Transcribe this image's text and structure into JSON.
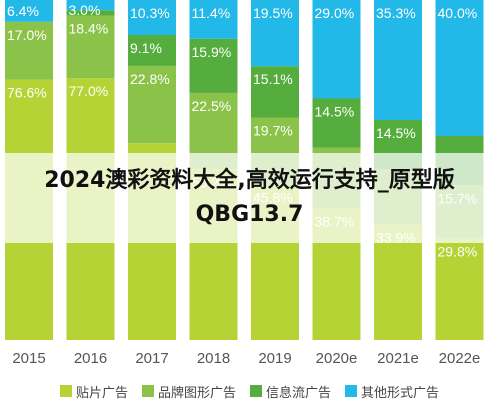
{
  "chart_data": {
    "type": "bar",
    "stacked": true,
    "normalized_percent": true,
    "categories": [
      "2015",
      "2016",
      "2017",
      "2018",
      "2019",
      "2020e",
      "2021e",
      "2022e"
    ],
    "series": [
      {
        "name": "贴片广告",
        "color": "#b5d334",
        "values": [
          76.6,
          77.0,
          58.0,
          50.2,
          45.8,
          38.7,
          33.9,
          29.8
        ],
        "labels": [
          "76.6%",
          "77.0%",
          "",
          "50.2%",
          "45.8%",
          "38.7%",
          "33.9%",
          "29.8%"
        ]
      },
      {
        "name": "品牌图形广告",
        "color": "#8bc34a",
        "values": [
          17.0,
          18.4,
          22.8,
          22.5,
          19.7,
          17.9,
          16.3,
          15.7
        ],
        "labels": [
          "17.0%",
          "18.4%",
          "22.8%",
          "22.5%",
          "19.7%",
          "",
          "",
          "15.7%"
        ]
      },
      {
        "name": "信息流广告",
        "color": "#55ad3d",
        "values": [
          0,
          1.6,
          9.1,
          15.9,
          15.1,
          14.5,
          14.5,
          14.5
        ],
        "labels": [
          "",
          "",
          "9.1%",
          "15.9%",
          "15.1%",
          "14.5%",
          "14.5%",
          ""
        ]
      },
      {
        "name": "其他形式广告",
        "color": "#22b8e8",
        "values": [
          6.4,
          3.0,
          10.3,
          11.4,
          19.5,
          29.0,
          35.3,
          40.0
        ],
        "labels": [
          "6.4%",
          "3.0%",
          "10.3%",
          "11.4%",
          "19.5%",
          "29.0%",
          "35.3%",
          "40.0%"
        ]
      }
    ],
    "ylim": [
      0,
      100
    ],
    "legend_position": "bottom"
  },
  "banner": {
    "text": "2024澳彩资料大全,高效运行支持_原型版QBG13.7"
  }
}
